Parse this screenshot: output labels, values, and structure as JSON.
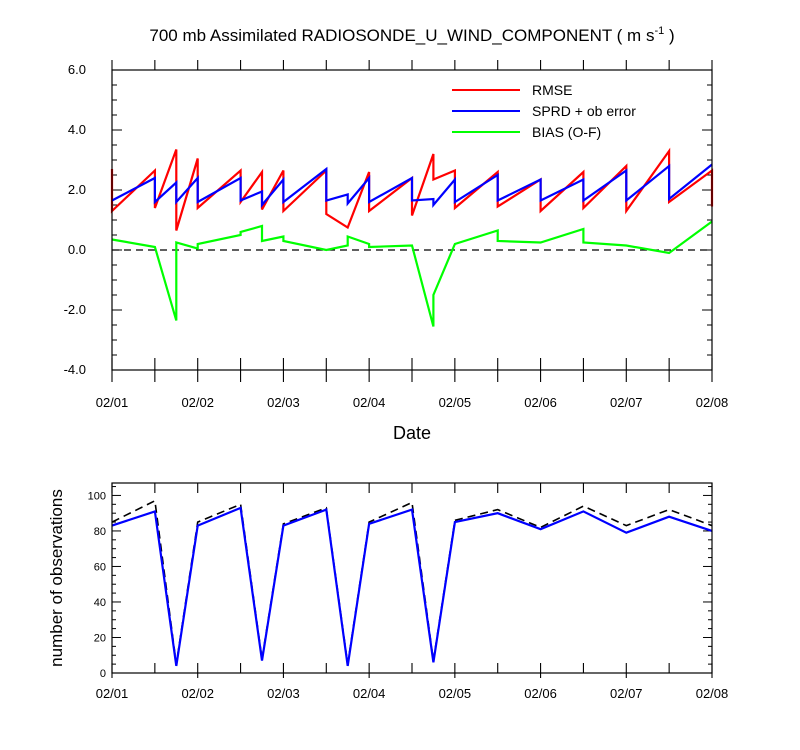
{
  "chart_data": [
    {
      "type": "line",
      "title_prefix": "700 mb Assimilated RADIOSONDE_U_WIND_COMPONENT ( m s",
      "title_sup": "-1",
      "title_suffix": " )",
      "xlabel": "Date",
      "ylabel": "",
      "x_ticks": [
        "02/01",
        "02/02",
        "02/03",
        "02/04",
        "02/05",
        "02/06",
        "02/07",
        "02/08"
      ],
      "xlim": [
        0,
        7
      ],
      "ylim": [
        -4.0,
        6.0
      ],
      "y_ticks": [
        "-4.0",
        "-2.0",
        "0.0",
        "2.0",
        "4.0",
        "6.0"
      ],
      "y_tick_values": [
        -4,
        -2,
        0,
        2,
        4,
        6
      ],
      "zero_line": 0,
      "legend": "top-right",
      "series": [
        {
          "name": "RMSE",
          "color": "#ff0000",
          "points": [
            [
              0,
              2.7
            ],
            [
              0,
              1.3
            ],
            [
              0.5,
              2.65
            ],
            [
              0.5,
              1.4
            ],
            [
              0.75,
              3.35
            ],
            [
              0.75,
              0.65
            ],
            [
              1,
              3.05
            ],
            [
              1,
              1.4
            ],
            [
              1.5,
              2.65
            ],
            [
              1.5,
              1.6
            ],
            [
              1.75,
              2.6
            ],
            [
              1.75,
              1.35
            ],
            [
              2,
              2.65
            ],
            [
              2,
              1.3
            ],
            [
              2.5,
              2.65
            ],
            [
              2.5,
              1.2
            ],
            [
              2.75,
              0.75
            ],
            [
              3,
              2.6
            ],
            [
              3,
              1.3
            ],
            [
              3.5,
              2.4
            ],
            [
              3.5,
              1.15
            ],
            [
              3.75,
              3.2
            ],
            [
              3.75,
              2.35
            ],
            [
              4,
              2.65
            ],
            [
              4,
              1.4
            ],
            [
              4.5,
              2.6
            ],
            [
              4.5,
              1.45
            ],
            [
              5,
              2.35
            ],
            [
              5,
              1.3
            ],
            [
              5.5,
              2.6
            ],
            [
              5.5,
              1.4
            ],
            [
              6,
              2.8
            ],
            [
              6,
              1.3
            ],
            [
              6.5,
              3.3
            ],
            [
              6.5,
              1.6
            ],
            [
              7,
              2.65
            ],
            [
              7,
              1.45
            ]
          ]
        },
        {
          "name": "SPRD + ob error",
          "color": "#0000ff",
          "points": [
            [
              0,
              1.65
            ],
            [
              0.5,
              2.4
            ],
            [
              0.5,
              1.6
            ],
            [
              0.75,
              2.25
            ],
            [
              0.75,
              1.6
            ],
            [
              1,
              2.4
            ],
            [
              1,
              1.6
            ],
            [
              1.5,
              2.4
            ],
            [
              1.5,
              1.65
            ],
            [
              1.75,
              1.95
            ],
            [
              1.75,
              1.5
            ],
            [
              2,
              2.35
            ],
            [
              2,
              1.6
            ],
            [
              2.5,
              2.7
            ],
            [
              2.5,
              1.65
            ],
            [
              2.75,
              1.85
            ],
            [
              2.75,
              1.55
            ],
            [
              3,
              2.4
            ],
            [
              3,
              1.6
            ],
            [
              3.5,
              2.4
            ],
            [
              3.5,
              1.65
            ],
            [
              3.75,
              1.7
            ],
            [
              3.75,
              1.5
            ],
            [
              4,
              2.35
            ],
            [
              4,
              1.6
            ],
            [
              4.5,
              2.5
            ],
            [
              4.5,
              1.65
            ],
            [
              5,
              2.35
            ],
            [
              5,
              1.65
            ],
            [
              5.5,
              2.35
            ],
            [
              5.5,
              1.65
            ],
            [
              6,
              2.65
            ],
            [
              6,
              1.65
            ],
            [
              6.5,
              2.8
            ],
            [
              6.5,
              1.7
            ],
            [
              7,
              2.85
            ]
          ]
        },
        {
          "name": "BIAS (O-F)",
          "color": "#00ff00",
          "points": [
            [
              0,
              0.35
            ],
            [
              0.5,
              0.1
            ],
            [
              0.75,
              -2.35
            ],
            [
              0.75,
              0.25
            ],
            [
              1,
              0.05
            ],
            [
              1,
              0.2
            ],
            [
              1.5,
              0.5
            ],
            [
              1.5,
              0.6
            ],
            [
              1.75,
              0.8
            ],
            [
              1.75,
              0.3
            ],
            [
              2,
              0.45
            ],
            [
              2,
              0.3
            ],
            [
              2.5,
              0.0
            ],
            [
              2.75,
              0.15
            ],
            [
              2.75,
              0.45
            ],
            [
              3,
              0.2
            ],
            [
              3,
              0.1
            ],
            [
              3.5,
              0.15
            ],
            [
              3.75,
              -2.55
            ],
            [
              3.75,
              -1.5
            ],
            [
              4,
              0.2
            ],
            [
              4.5,
              0.65
            ],
            [
              4.5,
              0.3
            ],
            [
              5,
              0.25
            ],
            [
              5.5,
              0.7
            ],
            [
              5.5,
              0.25
            ],
            [
              6,
              0.15
            ],
            [
              6.5,
              -0.1
            ],
            [
              7,
              0.95
            ]
          ]
        }
      ]
    },
    {
      "type": "line",
      "title": "",
      "xlabel": "",
      "ylabel": "number of observations",
      "x_ticks": [
        "02/01",
        "02/02",
        "02/03",
        "02/04",
        "02/05",
        "02/06",
        "02/07",
        "02/08"
      ],
      "xlim": [
        0,
        7
      ],
      "ylim": [
        0,
        107
      ],
      "y_ticks": [
        "0",
        "20",
        "40",
        "60",
        "80",
        "100"
      ],
      "y_tick_values": [
        0,
        20,
        40,
        60,
        80,
        100
      ],
      "series": [
        {
          "color": "#000000",
          "dash": true,
          "points": [
            [
              0,
              85
            ],
            [
              0.5,
              97
            ],
            [
              0.75,
              5
            ],
            [
              1,
              85
            ],
            [
              1.5,
              95
            ],
            [
              1.75,
              8
            ],
            [
              2,
              84
            ],
            [
              2.5,
              93
            ],
            [
              2.75,
              5
            ],
            [
              3,
              85
            ],
            [
              3.5,
              96
            ],
            [
              3.75,
              7
            ],
            [
              4,
              86
            ],
            [
              4.5,
              92
            ],
            [
              5,
              82
            ],
            [
              5.5,
              94
            ],
            [
              6,
              83
            ],
            [
              6.5,
              92
            ],
            [
              7,
              83
            ]
          ]
        },
        {
          "color": "#0000ff",
          "dash": false,
          "points": [
            [
              0,
              83
            ],
            [
              0.5,
              91
            ],
            [
              0.75,
              4
            ],
            [
              1,
              83
            ],
            [
              1.5,
              93
            ],
            [
              1.75,
              7
            ],
            [
              2,
              83
            ],
            [
              2.5,
              92
            ],
            [
              2.75,
              4
            ],
            [
              3,
              84
            ],
            [
              3.5,
              92
            ],
            [
              3.75,
              6
            ],
            [
              4,
              85
            ],
            [
              4.5,
              90
            ],
            [
              5,
              81
            ],
            [
              5.5,
              91
            ],
            [
              6,
              79
            ],
            [
              6.5,
              88
            ],
            [
              7,
              80
            ]
          ]
        }
      ]
    }
  ]
}
